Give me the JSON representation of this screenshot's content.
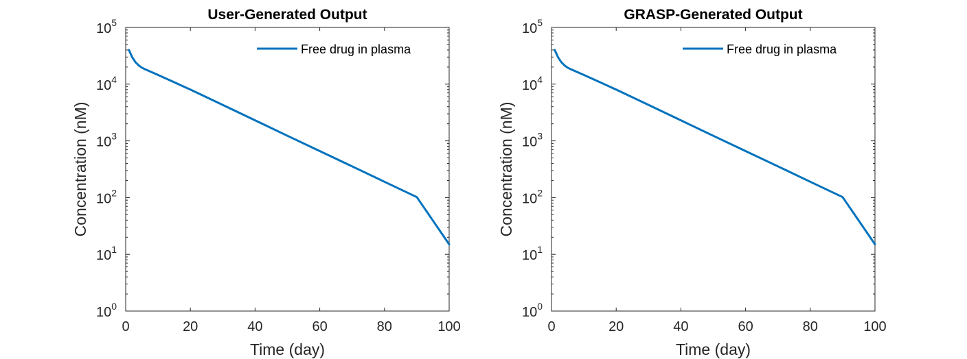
{
  "chart_data": [
    {
      "type": "line",
      "title": "User-Generated Output",
      "xlabel": "Time (day)",
      "ylabel": "Concentration (nM)",
      "xlim": [
        0,
        100
      ],
      "ylim": [
        1,
        100000
      ],
      "yscale": "log",
      "xticks": [
        "0",
        "20",
        "40",
        "60",
        "80",
        "100"
      ],
      "yticks": [
        {
          "base": "10",
          "exp": "0"
        },
        {
          "base": "10",
          "exp": "1"
        },
        {
          "base": "10",
          "exp": "2"
        },
        {
          "base": "10",
          "exp": "3"
        },
        {
          "base": "10",
          "exp": "4"
        },
        {
          "base": "10",
          "exp": "5"
        }
      ],
      "legend": {
        "position": "top-right",
        "entries": [
          "Free drug in plasma"
        ]
      },
      "series": [
        {
          "name": "Free drug in plasma",
          "color": "#0072BD",
          "x": [
            1,
            2,
            3,
            4,
            5,
            6,
            8,
            10,
            15,
            20,
            30,
            40,
            50,
            60,
            70,
            80,
            90,
            100
          ],
          "y": [
            40000,
            30000,
            24500,
            21500,
            19500,
            18300,
            16300,
            14500,
            10800,
            8000,
            4300,
            2300,
            1230,
            660,
            355,
            190,
            102,
            15
          ]
        }
      ]
    },
    {
      "type": "line",
      "title": "GRASP-Generated Output",
      "xlabel": "Time (day)",
      "ylabel": "Concentration (nM)",
      "xlim": [
        0,
        100
      ],
      "ylim": [
        1,
        100000
      ],
      "yscale": "log",
      "xticks": [
        "0",
        "20",
        "40",
        "60",
        "80",
        "100"
      ],
      "yticks": [
        {
          "base": "10",
          "exp": "0"
        },
        {
          "base": "10",
          "exp": "1"
        },
        {
          "base": "10",
          "exp": "2"
        },
        {
          "base": "10",
          "exp": "3"
        },
        {
          "base": "10",
          "exp": "4"
        },
        {
          "base": "10",
          "exp": "5"
        }
      ],
      "legend": {
        "position": "top-right",
        "entries": [
          "Free drug in plasma"
        ]
      },
      "series": [
        {
          "name": "Free drug in plasma",
          "color": "#0072BD",
          "x": [
            1,
            2,
            3,
            4,
            5,
            6,
            8,
            10,
            15,
            20,
            30,
            40,
            50,
            60,
            70,
            80,
            90,
            100
          ],
          "y": [
            40000,
            30000,
            24500,
            21500,
            19500,
            18300,
            16300,
            14500,
            10800,
            8000,
            4300,
            2300,
            1230,
            660,
            355,
            190,
            102,
            15
          ]
        }
      ]
    }
  ]
}
